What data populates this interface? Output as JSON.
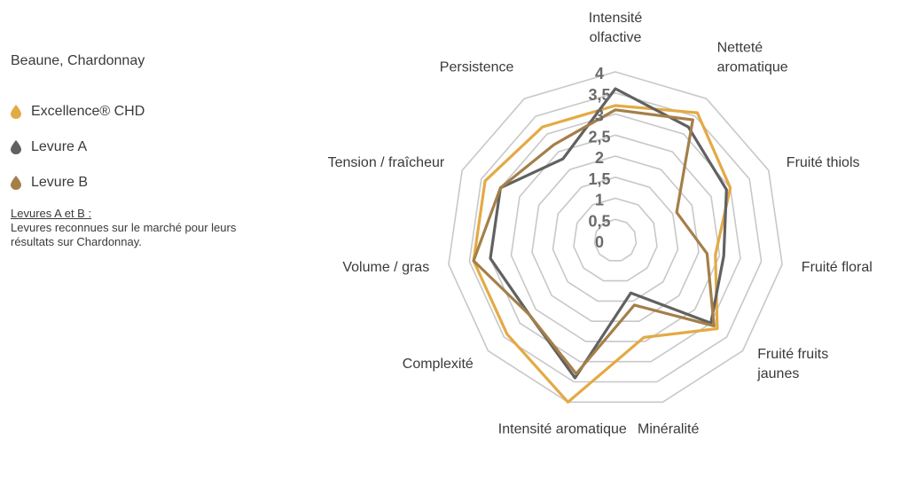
{
  "legend": {
    "title": "Beaune, Chardonnay",
    "items": [
      {
        "label": "Excellence® CHD",
        "color": "#e3aa44"
      },
      {
        "label": "Levure A",
        "color": "#616161"
      },
      {
        "label": "Levure B",
        "color": "#a47f48"
      }
    ],
    "note_heading": "Levures A et B :",
    "note_text": "Levures reconnues sur le marché pour leurs résultats sur Chardonnay."
  },
  "chart_data": {
    "type": "radar",
    "axes": [
      [
        "Intensité",
        "olfactive"
      ],
      [
        "Netteté",
        "aromatique"
      ],
      [
        "Fruité thiols"
      ],
      [
        "Fruité floral"
      ],
      [
        "Fruité fruits",
        "jaunes"
      ],
      [
        "Minéralité"
      ],
      [
        "Intensité aromatique"
      ],
      [
        "Complexité"
      ],
      [
        "Volume / gras"
      ],
      [
        "Tension / fraîcheur"
      ],
      [
        "Persistence"
      ]
    ],
    "tick_labels": [
      "0",
      "0,5",
      "1",
      "1,5",
      "2",
      "2,5",
      "3",
      "3,5",
      "4"
    ],
    "range": [
      0,
      4
    ],
    "grid": true,
    "series": [
      {
        "name": "Excellence® CHD",
        "color": "#e3aa44",
        "values": [
          3.2,
          3.6,
          3.0,
          2.4,
          3.2,
          2.4,
          4.0,
          3.4,
          3.4,
          3.4,
          3.2
        ]
      },
      {
        "name": "Levure A",
        "color": "#616161",
        "values": [
          3.6,
          3.2,
          2.9,
          2.6,
          3.0,
          1.3,
          3.4,
          2.7,
          3.0,
          3.0,
          2.3
        ]
      },
      {
        "name": "Levure B",
        "color": "#a47f48",
        "values": [
          3.1,
          3.4,
          1.6,
          2.2,
          3.1,
          1.6,
          3.3,
          2.7,
          3.4,
          3.0,
          2.7
        ]
      }
    ]
  }
}
